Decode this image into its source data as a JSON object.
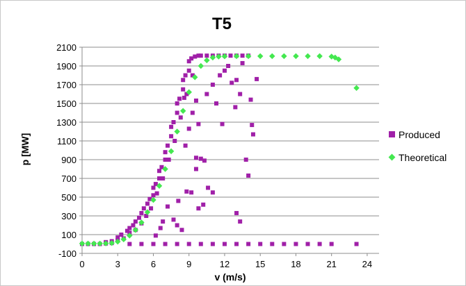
{
  "chart_data": {
    "type": "scatter",
    "title": "T5",
    "xlabel": "v (m/s)",
    "ylabel": "p [MW]",
    "xlim": [
      0,
      25
    ],
    "ylim": [
      -100,
      2100
    ],
    "xticks": [
      0,
      3,
      6,
      9,
      12,
      15,
      18,
      21,
      24
    ],
    "yticks": [
      -100,
      100,
      300,
      500,
      700,
      900,
      1100,
      1300,
      1500,
      1700,
      1900,
      2100
    ],
    "grid": "horizontal",
    "legend_position": "right",
    "series": [
      {
        "name": "Produced",
        "color": "#a020a8",
        "marker": "square",
        "points": [
          [
            0,
            0
          ],
          [
            0.5,
            0
          ],
          [
            1,
            0
          ],
          [
            1.5,
            0
          ],
          [
            2,
            5
          ],
          [
            2,
            20
          ],
          [
            2.5,
            30
          ],
          [
            2.5,
            10
          ],
          [
            3,
            40
          ],
          [
            3,
            70
          ],
          [
            3.3,
            100
          ],
          [
            3.5,
            60
          ],
          [
            3.8,
            140
          ],
          [
            4,
            120
          ],
          [
            4,
            170
          ],
          [
            4.3,
            200
          ],
          [
            4.5,
            150
          ],
          [
            4.5,
            240
          ],
          [
            4.8,
            280
          ],
          [
            5,
            220
          ],
          [
            5,
            330
          ],
          [
            5.2,
            380
          ],
          [
            5.4,
            300
          ],
          [
            5.5,
            430
          ],
          [
            5.7,
            480
          ],
          [
            5.8,
            380
          ],
          [
            6,
            520
          ],
          [
            6,
            600
          ],
          [
            6.2,
            640
          ],
          [
            6.3,
            540
          ],
          [
            6.5,
            700
          ],
          [
            6.5,
            780
          ],
          [
            6.7,
            820
          ],
          [
            6.8,
            700
          ],
          [
            7,
            900
          ],
          [
            7,
            980
          ],
          [
            7.2,
            1050
          ],
          [
            7.3,
            900
          ],
          [
            7.5,
            1150
          ],
          [
            7.5,
            1250
          ],
          [
            7.7,
            1300
          ],
          [
            7.8,
            1100
          ],
          [
            8,
            1400
          ],
          [
            8,
            1500
          ],
          [
            8.2,
            1550
          ],
          [
            8.3,
            1350
          ],
          [
            8.5,
            1650
          ],
          [
            8.5,
            1750
          ],
          [
            8.7,
            1800
          ],
          [
            8.8,
            1600
          ],
          [
            9,
            1850
          ],
          [
            9,
            1950
          ],
          [
            9.2,
            1980
          ],
          [
            9.3,
            1800
          ],
          [
            9.5,
            2000
          ],
          [
            9.8,
            2010
          ],
          [
            10,
            2010
          ],
          [
            10.5,
            2010
          ],
          [
            11,
            2010
          ],
          [
            11.5,
            2010
          ],
          [
            12,
            2010
          ],
          [
            12.5,
            2010
          ],
          [
            13,
            2010
          ],
          [
            13.5,
            2010
          ],
          [
            14,
            2010
          ],
          [
            8.6,
            1560
          ],
          [
            8.7,
            1050
          ],
          [
            8.8,
            560
          ],
          [
            9.2,
            550
          ],
          [
            9.6,
            800
          ],
          [
            9.6,
            920
          ],
          [
            9.8,
            380
          ],
          [
            10,
            910
          ],
          [
            10.3,
            890
          ],
          [
            9,
            1230
          ],
          [
            9.3,
            1400
          ],
          [
            9.6,
            1530
          ],
          [
            9.8,
            1280
          ],
          [
            10.5,
            1600
          ],
          [
            11,
            1700
          ],
          [
            11.3,
            1500
          ],
          [
            11.6,
            1800
          ],
          [
            11.8,
            1280
          ],
          [
            12,
            1850
          ],
          [
            12.3,
            1900
          ],
          [
            12.6,
            1720
          ],
          [
            12.9,
            1460
          ],
          [
            13,
            1750
          ],
          [
            13.3,
            1600
          ],
          [
            13.5,
            1930
          ],
          [
            13.8,
            900
          ],
          [
            14,
            730
          ],
          [
            14.2,
            1540
          ],
          [
            14.3,
            1270
          ],
          [
            14.4,
            1170
          ],
          [
            14.7,
            1760
          ],
          [
            13,
            330
          ],
          [
            13.3,
            240
          ],
          [
            10.6,
            600
          ],
          [
            11,
            550
          ],
          [
            10.2,
            420
          ],
          [
            7.7,
            260
          ],
          [
            8,
            200
          ],
          [
            8.4,
            150
          ],
          [
            6.8,
            240
          ],
          [
            7.2,
            400
          ],
          [
            8.1,
            460
          ],
          [
            6.6,
            170
          ],
          [
            6.2,
            90
          ],
          [
            4,
            0
          ],
          [
            5,
            0
          ],
          [
            6,
            0
          ],
          [
            7,
            0
          ],
          [
            8,
            0
          ],
          [
            9,
            0
          ],
          [
            10,
            0
          ],
          [
            11,
            0
          ],
          [
            12,
            0
          ],
          [
            13,
            0
          ],
          [
            14,
            0
          ],
          [
            15,
            0
          ],
          [
            16,
            0
          ],
          [
            17,
            0
          ],
          [
            18,
            0
          ],
          [
            19,
            0
          ],
          [
            20,
            0
          ],
          [
            21,
            0
          ],
          [
            23.1,
            0
          ]
        ]
      },
      {
        "name": "Theoretical",
        "color": "#44e850",
        "marker": "diamond",
        "points": [
          [
            0,
            5
          ],
          [
            0.5,
            5
          ],
          [
            1,
            5
          ],
          [
            1.5,
            5
          ],
          [
            2,
            6
          ],
          [
            2.5,
            10
          ],
          [
            3,
            25
          ],
          [
            3.5,
            50
          ],
          [
            4,
            90
          ],
          [
            4.5,
            150
          ],
          [
            5,
            230
          ],
          [
            5.5,
            340
          ],
          [
            6,
            470
          ],
          [
            6.5,
            620
          ],
          [
            7,
            800
          ],
          [
            7.5,
            990
          ],
          [
            8,
            1200
          ],
          [
            8.5,
            1420
          ],
          [
            9,
            1620
          ],
          [
            9.5,
            1780
          ],
          [
            10,
            1900
          ],
          [
            10.5,
            1960
          ],
          [
            11,
            1990
          ],
          [
            11.5,
            2000
          ],
          [
            12,
            2003
          ],
          [
            13,
            2005
          ],
          [
            14,
            2005
          ],
          [
            15,
            2005
          ],
          [
            16,
            2005
          ],
          [
            17,
            2005
          ],
          [
            18,
            2005
          ],
          [
            19,
            2005
          ],
          [
            20,
            2005
          ],
          [
            21,
            2000
          ],
          [
            21.3,
            1990
          ],
          [
            21.6,
            1970
          ],
          [
            23.1,
            1665
          ]
        ]
      }
    ]
  }
}
